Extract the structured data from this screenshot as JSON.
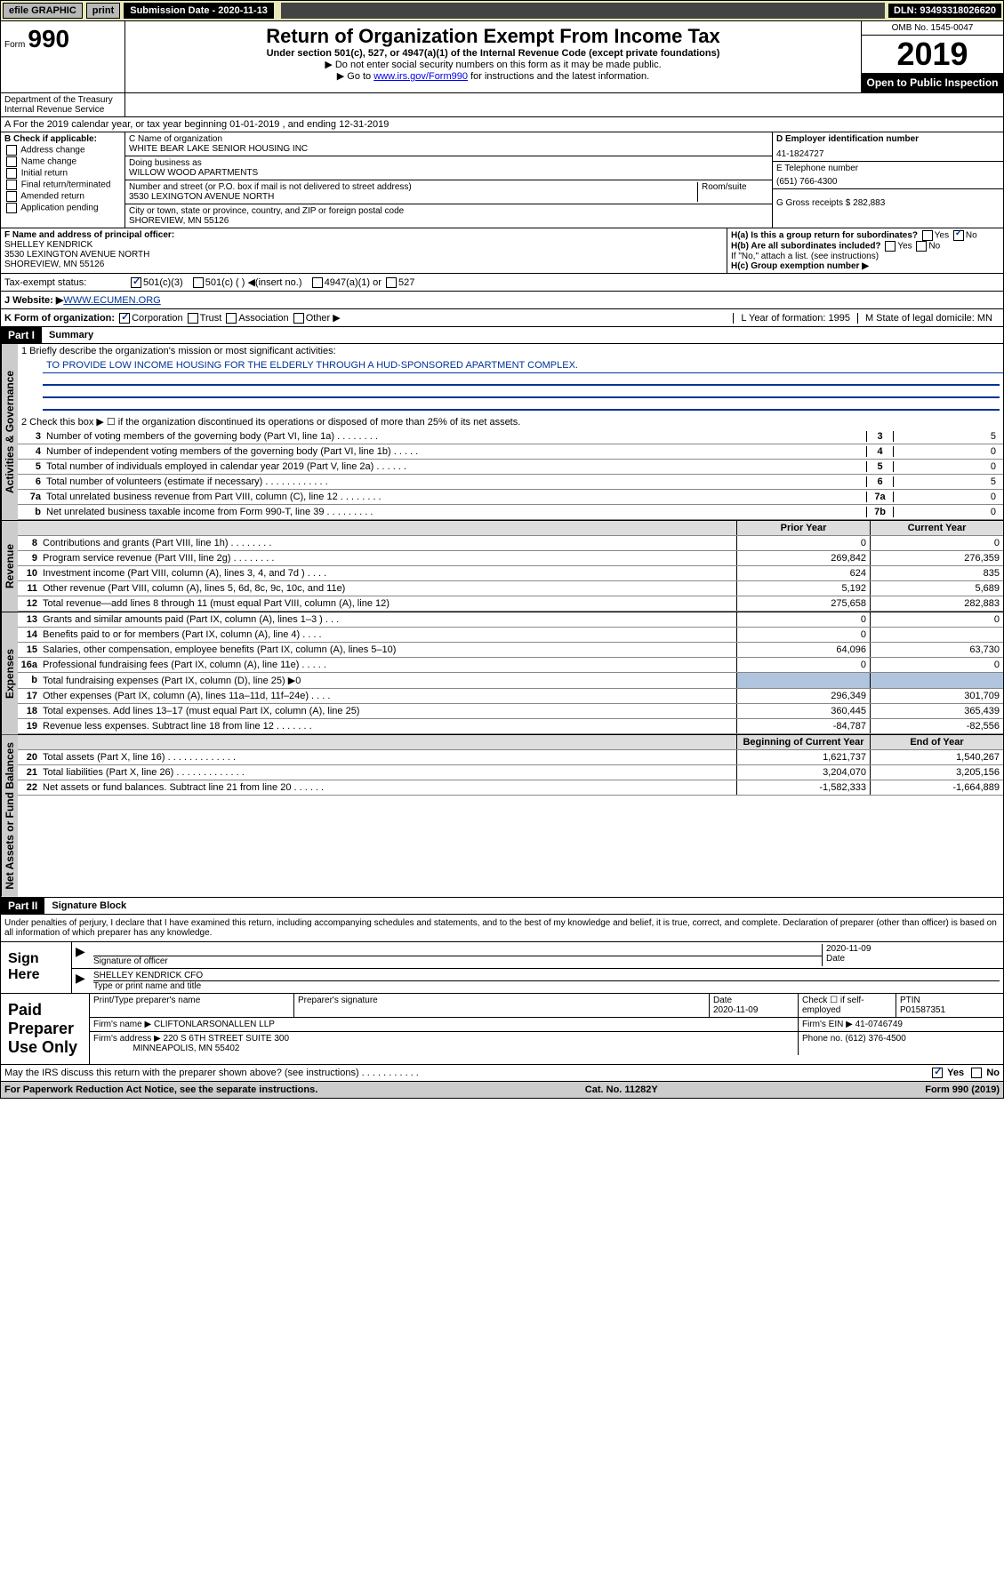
{
  "topbar": {
    "efile": "efile GRAPHIC",
    "print": "print",
    "subdate_label": "Submission Date - 2020-11-13",
    "dln": "DLN: 93493318026620"
  },
  "header": {
    "form_label": "Form",
    "form_num": "990",
    "title": "Return of Organization Exempt From Income Tax",
    "subtitle": "Under section 501(c), 527, or 4947(a)(1) of the Internal Revenue Code (except private foundations)",
    "note1": "▶ Do not enter social security numbers on this form as it may be made public.",
    "note2_pre": "▶ Go to ",
    "note2_link": "www.irs.gov/Form990",
    "note2_post": " for instructions and the latest information.",
    "omb": "OMB No. 1545-0047",
    "year": "2019",
    "open": "Open to Public Inspection",
    "dept": "Department of the Treasury Internal Revenue Service"
  },
  "period": "A For the 2019 calendar year, or tax year beginning 01-01-2019    , and ending 12-31-2019",
  "colB": {
    "label": "B Check if applicable:",
    "opts": [
      "Address change",
      "Name change",
      "Initial return",
      "Final return/terminated",
      "Amended return",
      "Application pending"
    ]
  },
  "colC": {
    "name_label": "C Name of organization",
    "name": "WHITE BEAR LAKE SENIOR HOUSING INC",
    "dba_label": "Doing business as",
    "dba": "WILLOW WOOD APARTMENTS",
    "addr_label": "Number and street (or P.O. box if mail is not delivered to street address)",
    "room_label": "Room/suite",
    "addr": "3530 LEXINGTON AVENUE NORTH",
    "city_label": "City or town, state or province, country, and ZIP or foreign postal code",
    "city": "SHOREVIEW, MN  55126"
  },
  "colD": {
    "ein_label": "D Employer identification number",
    "ein": "41-1824727",
    "phone_label": "E Telephone number",
    "phone": "(651) 766-4300",
    "gross_label": "G Gross receipts $ 282,883"
  },
  "fRow": {
    "f_label": "F  Name and address of principal officer:",
    "f_name": "SHELLEY KENDRICK",
    "f_addr1": "3530 LEXINGTON AVENUE NORTH",
    "f_addr2": "SHOREVIEW, MN  55126",
    "ha_label": "H(a)  Is this a group return for subordinates?",
    "hb_label": "H(b)  Are all subordinates included?",
    "h_note": "If \"No,\" attach a list. (see instructions)",
    "hc_label": "H(c)  Group exemption number ▶"
  },
  "taxStatus": {
    "label": "Tax-exempt status:",
    "opt1": "501(c)(3)",
    "opt2": "501(c) (   ) ◀(insert no.)",
    "opt3": "4947(a)(1) or",
    "opt4": "527"
  },
  "website": {
    "label": "J Website: ▶ ",
    "url": "WWW.ECUMEN.ORG"
  },
  "kRow": {
    "label": "K Form of organization:",
    "opts": [
      "Corporation",
      "Trust",
      "Association",
      "Other ▶"
    ],
    "l_label": "L Year of formation: 1995",
    "m_label": "M State of legal domicile: MN"
  },
  "part1": {
    "title": "Part I",
    "label": "Summary"
  },
  "summary": {
    "line1_label": "1  Briefly describe the organization's mission or most significant activities:",
    "mission": "TO PROVIDE LOW INCOME HOUSING FOR THE ELDERLY THROUGH A HUD-SPONSORED APARTMENT COMPLEX.",
    "line2": "2  Check this box ▶ ☐  if the organization discontinued its operations or disposed of more than 25% of its net assets.",
    "rows_gov": [
      {
        "n": "3",
        "t": "Number of voting members of the governing body (Part VI, line 1a)   .    .    .    .    .    .    .    .",
        "b": "3",
        "v": "5"
      },
      {
        "n": "4",
        "t": "Number of independent voting members of the governing body (Part VI, line 1b)  .    .    .    .    .",
        "b": "4",
        "v": "0"
      },
      {
        "n": "5",
        "t": "Total number of individuals employed in calendar year 2019 (Part V, line 2a)   .    .    .    .    .    .",
        "b": "5",
        "v": "0"
      },
      {
        "n": "6",
        "t": "Total number of volunteers (estimate if necessary)  .    .    .    .    .    .    .    .    .    .    .    .",
        "b": "6",
        "v": "5"
      },
      {
        "n": "7a",
        "t": "Total unrelated business revenue from Part VIII, column (C), line 12  .    .    .    .    .    .    .    .",
        "b": "7a",
        "v": "0"
      },
      {
        "n": " b",
        "t": "Net unrelated business taxable income from Form 990-T, line 39   .    .    .    .    .    .    .    .    .",
        "b": "7b",
        "v": "0"
      }
    ],
    "col_prior": "Prior Year",
    "col_curr": "Current Year",
    "rev_rows": [
      {
        "n": "8",
        "t": "Contributions and grants (Part VIII, line 1h)   .    .    .    .    .    .    .    .",
        "p": "0",
        "c": "0"
      },
      {
        "n": "9",
        "t": "Program service revenue (Part VIII, line 2g)   .    .    .    .    .    .    .    .",
        "p": "269,842",
        "c": "276,359"
      },
      {
        "n": "10",
        "t": "Investment income (Part VIII, column (A), lines 3, 4, and 7d )   .    .    .    .",
        "p": "624",
        "c": "835"
      },
      {
        "n": "11",
        "t": "Other revenue (Part VIII, column (A), lines 5, 6d, 8c, 9c, 10c, and 11e)",
        "p": "5,192",
        "c": "5,689"
      },
      {
        "n": "12",
        "t": "Total revenue—add lines 8 through 11 (must equal Part VIII, column (A), line 12)",
        "p": "275,658",
        "c": "282,883"
      }
    ],
    "exp_rows": [
      {
        "n": "13",
        "t": "Grants and similar amounts paid (Part IX, column (A), lines 1–3 )    .    .    .",
        "p": "0",
        "c": "0"
      },
      {
        "n": "14",
        "t": "Benefits paid to or for members (Part IX, column (A), line 4)  .    .    .    .",
        "p": "0",
        "c": ""
      },
      {
        "n": "15",
        "t": "Salaries, other compensation, employee benefits (Part IX, column (A), lines 5–10)",
        "p": "64,096",
        "c": "63,730"
      },
      {
        "n": "16a",
        "t": "Professional fundraising fees (Part IX, column (A), line 11e)  .    .    .    .    .",
        "p": "0",
        "c": "0"
      },
      {
        "n": "b",
        "t": "Total fundraising expenses (Part IX, column (D), line 25) ▶0",
        "p": "",
        "c": "",
        "shaded": true
      },
      {
        "n": "17",
        "t": "Other expenses (Part IX, column (A), lines 11a–11d, 11f–24e)  .    .    .    .",
        "p": "296,349",
        "c": "301,709"
      },
      {
        "n": "18",
        "t": "Total expenses. Add lines 13–17 (must equal Part IX, column (A), line 25)",
        "p": "360,445",
        "c": "365,439"
      },
      {
        "n": "19",
        "t": "Revenue less expenses. Subtract line 18 from line 12   .    .    .    .    .    .    .",
        "p": "-84,787",
        "c": "-82,556"
      }
    ],
    "col_beg": "Beginning of Current Year",
    "col_end": "End of Year",
    "na_rows": [
      {
        "n": "20",
        "t": "Total assets (Part X, line 16)   .    .    .    .    .    .    .    .    .    .    .    .    .",
        "p": "1,621,737",
        "c": "1,540,267"
      },
      {
        "n": "21",
        "t": "Total liabilities (Part X, line 26)  .    .    .    .    .    .    .    .    .    .    .    .    .",
        "p": "3,204,070",
        "c": "3,205,156"
      },
      {
        "n": "22",
        "t": "Net assets or fund balances. Subtract line 21 from line 20   .    .    .    .    .    .",
        "p": "-1,582,333",
        "c": "-1,664,889"
      }
    ],
    "side_gov": "Activities & Governance",
    "side_rev": "Revenue",
    "side_exp": "Expenses",
    "side_na": "Net Assets or Fund Balances"
  },
  "part2": {
    "title": "Part II",
    "label": "Signature Block"
  },
  "sig": {
    "text": "Under penalties of perjury, I declare that I have examined this return, including accompanying schedules and statements, and to the best of my knowledge and belief, it is true, correct, and complete. Declaration of preparer (other than officer) is based on all information of which preparer has any knowledge.",
    "sign_here": "Sign Here",
    "sig_officer": "Signature of officer",
    "date1": "2020-11-09",
    "date_label": "Date",
    "officer_name": "SHELLEY KENDRICK  CFO",
    "type_name": "Type or print name and title"
  },
  "paid": {
    "label": "Paid Preparer Use Only",
    "h1": "Print/Type preparer's name",
    "h2": "Preparer's signature",
    "h3": "Date",
    "h3v": "2020-11-09",
    "h4": "Check ☐ if self-employed",
    "h5": "PTIN",
    "h5v": "P01587351",
    "firm_label": "Firm's name    ▶",
    "firm": "CLIFTONLARSONALLEN LLP",
    "ein_label": "Firm's EIN ▶",
    "ein": "41-0746749",
    "addr_label": "Firm's address ▶",
    "addr1": "220 S 6TH STREET SUITE 300",
    "addr2": "MINNEAPOLIS, MN  55402",
    "phone_label": "Phone no.",
    "phone": "(612) 376-4500"
  },
  "discuss": {
    "text": "May the IRS discuss this return with the preparer shown above? (see instructions)     .    .    .    .    .    .    .    .    .    .    .",
    "yes": "Yes",
    "no": "No"
  },
  "footer": {
    "left": "For Paperwork Reduction Act Notice, see the separate instructions.",
    "mid": "Cat. No. 11282Y",
    "right": "Form 990 (2019)"
  }
}
